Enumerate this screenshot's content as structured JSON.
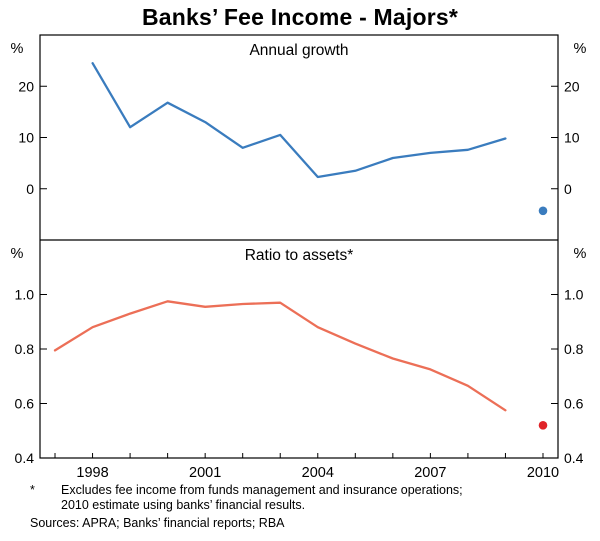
{
  "page": {
    "title": "Banks’ Fee Income - Majors*"
  },
  "x_axis": {
    "range": [
      1996.6,
      2010.4
    ],
    "tick_labels": [
      "1998",
      "2001",
      "2004",
      "2007",
      "2010"
    ],
    "minor_ticks": [
      1997,
      1998,
      1999,
      2000,
      2001,
      2002,
      2003,
      2004,
      2005,
      2006,
      2007,
      2008,
      2009,
      2010
    ]
  },
  "chart_data": [
    {
      "type": "line",
      "panel_title": "Annual growth",
      "unit_left": "%",
      "unit_right": "%",
      "ylim": [
        -10,
        30
      ],
      "ytick_labels": [
        "0",
        "10",
        "20"
      ],
      "series": [
        {
          "name": "Annual growth",
          "color": "#3a7cbe",
          "x": [
            1998,
            1999,
            2000,
            2001,
            2002,
            2003,
            2004,
            2005,
            2006,
            2007,
            2008,
            2009
          ],
          "values": [
            24.5,
            12.0,
            16.8,
            13.0,
            8.0,
            10.5,
            2.3,
            3.5,
            6.0,
            7.0,
            7.6,
            9.8
          ]
        }
      ],
      "markers": [
        {
          "x": 2010,
          "value": -4.3,
          "color": "#3a7cbe"
        }
      ]
    },
    {
      "type": "line",
      "panel_title": "Ratio to assets*",
      "unit_left": "%",
      "unit_right": "%",
      "ylim": [
        0.4,
        1.2
      ],
      "ytick_labels": [
        "0.4",
        "0.6",
        "0.8",
        "1.0"
      ],
      "series": [
        {
          "name": "Ratio to assets",
          "color": "#ec6f57",
          "x": [
            1997,
            1998,
            1999,
            2000,
            2001,
            2002,
            2003,
            2004,
            2005,
            2006,
            2007,
            2008,
            2009
          ],
          "values": [
            0.795,
            0.88,
            0.93,
            0.975,
            0.955,
            0.965,
            0.97,
            0.88,
            0.82,
            0.765,
            0.725,
            0.665,
            0.575
          ]
        }
      ],
      "markers": [
        {
          "x": 2010,
          "value": 0.52,
          "color": "#e02429"
        }
      ]
    }
  ],
  "footnotes": {
    "marker": "*",
    "line1": "Excludes fee income from funds management and insurance operations;",
    "line2": "2010 estimate using banks’ financial results.",
    "sources": "Sources: APRA; Banks’ financial reports; RBA"
  }
}
